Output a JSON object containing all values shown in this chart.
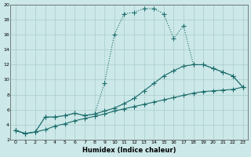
{
  "xlabel": "Humidex (Indice chaleur)",
  "background_color": "#cce8e8",
  "line_color": "#1a6b6b",
  "xlim": [
    -0.5,
    23.5
  ],
  "ylim": [
    2,
    20
  ],
  "xticks": [
    0,
    1,
    2,
    3,
    4,
    5,
    6,
    7,
    8,
    9,
    10,
    11,
    12,
    13,
    14,
    15,
    16,
    17,
    18,
    19,
    20,
    21,
    22,
    23
  ],
  "yticks": [
    2,
    4,
    6,
    8,
    10,
    12,
    14,
    16,
    18,
    20
  ],
  "grid_color": "#aacccc",
  "markersize": 2.5,
  "line1_x": [
    0,
    1,
    2,
    3,
    4,
    5,
    6,
    7,
    8,
    9,
    10,
    11,
    12,
    13,
    14,
    15,
    16,
    17,
    18,
    19,
    20,
    21,
    22,
    23
  ],
  "line1_y": [
    3.2,
    2.8,
    3.0,
    3.3,
    3.8,
    4.1,
    4.5,
    4.8,
    5.1,
    5.4,
    5.8,
    6.1,
    6.4,
    6.7,
    7.0,
    7.3,
    7.6,
    7.9,
    8.2,
    8.4,
    8.5,
    8.6,
    8.7,
    9.0
  ],
  "line2_x": [
    0,
    1,
    2,
    3,
    4,
    5,
    6,
    7,
    8,
    9,
    10,
    11,
    12,
    13,
    14,
    15,
    16,
    17,
    18,
    19,
    20,
    21,
    22,
    23
  ],
  "line2_y": [
    3.2,
    2.8,
    3.0,
    5.0,
    5.0,
    5.2,
    5.5,
    5.2,
    5.4,
    5.8,
    6.2,
    6.8,
    7.5,
    8.5,
    9.5,
    10.5,
    11.2,
    11.8,
    12.0,
    12.0,
    11.5,
    11.0,
    10.5,
    9.0
  ],
  "line3_x": [
    0,
    1,
    2,
    3,
    4,
    5,
    6,
    7,
    8,
    9,
    10,
    11,
    12,
    13,
    14,
    15,
    16,
    17,
    18,
    19,
    20,
    21,
    22,
    23
  ],
  "line3_y": [
    3.2,
    2.8,
    3.0,
    5.0,
    5.0,
    5.2,
    5.5,
    5.2,
    5.4,
    9.5,
    16.0,
    18.8,
    19.0,
    19.5,
    19.5,
    18.8,
    15.5,
    17.2,
    12.0,
    12.0,
    11.5,
    11.0,
    10.5,
    9.0
  ]
}
